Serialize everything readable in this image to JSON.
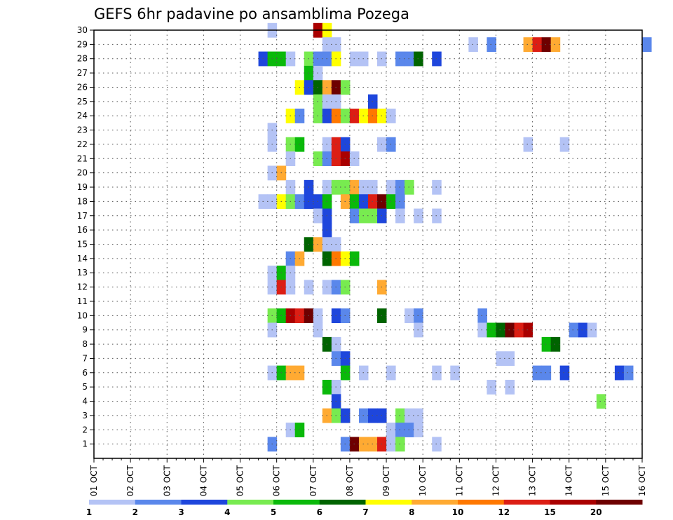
{
  "chart_data": {
    "type": "heatmap",
    "title": "GEFS 6hr padavine po ansamblima Pozega",
    "xlabel": "",
    "ylabel": "",
    "x_tick_labels": [
      "01 OCT",
      "02 OCT",
      "03 OCT",
      "04 OCT",
      "05 OCT",
      "06 OCT",
      "07 OCT",
      "08 OCT",
      "09 OCT",
      "10 OCT",
      "11 OCT",
      "12 OCT",
      "13 OCT",
      "14 OCT",
      "15 OCT",
      "16 OCT"
    ],
    "y_tick_labels": [
      "1",
      "2",
      "3",
      "4",
      "5",
      "6",
      "7",
      "8",
      "9",
      "10",
      "11",
      "12",
      "13",
      "14",
      "15",
      "16",
      "17",
      "18",
      "19",
      "20",
      "21",
      "22",
      "23",
      "24",
      "25",
      "26",
      "27",
      "28",
      "29",
      "30"
    ],
    "x_range_days": [
      1,
      16
    ],
    "y_range": [
      0,
      30
    ],
    "step_hours": 6,
    "grid": true,
    "legend": {
      "position": "bottom",
      "labels": [
        "1",
        "2",
        "3",
        "4",
        "5",
        "6",
        "7",
        "8",
        "10",
        "12",
        "15",
        "20"
      ],
      "colors": [
        "#b4c3f5",
        "#5a87eb",
        "#1e46dc",
        "#78eb50",
        "#0ab90a",
        "#006400",
        "#ffff00",
        "#ffaa32",
        "#ff7800",
        "#dc1e14",
        "#aa0000",
        "#6e0000"
      ]
    },
    "cells_note": "each cell: [day_of_october_at_cell_start, member, color_level_index]",
    "cells": [
      [
        5.75,
        30,
        0
      ],
      [
        7.0,
        30,
        10
      ],
      [
        7.25,
        30,
        6
      ],
      [
        7.25,
        29,
        0
      ],
      [
        7.5,
        29,
        0
      ],
      [
        11.25,
        29,
        0
      ],
      [
        11.75,
        29,
        1
      ],
      [
        12.75,
        29,
        7
      ],
      [
        13.0,
        29,
        9
      ],
      [
        13.25,
        29,
        11
      ],
      [
        13.5,
        29,
        7
      ],
      [
        16.0,
        29,
        1
      ],
      [
        5.5,
        28,
        2
      ],
      [
        5.75,
        28,
        4
      ],
      [
        6.0,
        28,
        4
      ],
      [
        6.25,
        28,
        0
      ],
      [
        6.75,
        28,
        3
      ],
      [
        7.0,
        28,
        1
      ],
      [
        7.25,
        28,
        1
      ],
      [
        7.5,
        28,
        6
      ],
      [
        8.0,
        28,
        0
      ],
      [
        8.25,
        28,
        0
      ],
      [
        8.75,
        28,
        0
      ],
      [
        9.25,
        28,
        1
      ],
      [
        9.5,
        28,
        1
      ],
      [
        9.75,
        28,
        5
      ],
      [
        10.25,
        28,
        2
      ],
      [
        6.75,
        27,
        4
      ],
      [
        7.0,
        27,
        0
      ],
      [
        6.5,
        26,
        6
      ],
      [
        6.75,
        26,
        2
      ],
      [
        7.0,
        26,
        5
      ],
      [
        7.25,
        26,
        7
      ],
      [
        7.5,
        26,
        11
      ],
      [
        7.75,
        26,
        3
      ],
      [
        7.0,
        25,
        3
      ],
      [
        7.25,
        25,
        0
      ],
      [
        7.5,
        25,
        0
      ],
      [
        8.5,
        25,
        2
      ],
      [
        6.25,
        24,
        6
      ],
      [
        6.5,
        24,
        1
      ],
      [
        7.0,
        24,
        3
      ],
      [
        7.25,
        24,
        2
      ],
      [
        7.5,
        24,
        8
      ],
      [
        7.75,
        24,
        3
      ],
      [
        8.0,
        24,
        9
      ],
      [
        8.25,
        24,
        6
      ],
      [
        8.5,
        24,
        8
      ],
      [
        8.75,
        24,
        6
      ],
      [
        9.0,
        24,
        0
      ],
      [
        5.75,
        23,
        0
      ],
      [
        5.75,
        22,
        0
      ],
      [
        6.25,
        22,
        3
      ],
      [
        6.5,
        22,
        4
      ],
      [
        7.25,
        22,
        0
      ],
      [
        7.5,
        22,
        9
      ],
      [
        7.75,
        22,
        2
      ],
      [
        8.75,
        22,
        0
      ],
      [
        9.0,
        22,
        1
      ],
      [
        12.75,
        22,
        0
      ],
      [
        13.75,
        22,
        0
      ],
      [
        6.25,
        21,
        0
      ],
      [
        7.0,
        21,
        3
      ],
      [
        7.25,
        21,
        1
      ],
      [
        7.5,
        21,
        9
      ],
      [
        7.75,
        21,
        10
      ],
      [
        8.0,
        21,
        0
      ],
      [
        5.75,
        20,
        0
      ],
      [
        6.0,
        20,
        7
      ],
      [
        6.25,
        19,
        0
      ],
      [
        6.75,
        19,
        2
      ],
      [
        7.25,
        19,
        0
      ],
      [
        7.5,
        19,
        3
      ],
      [
        7.75,
        19,
        3
      ],
      [
        8.0,
        19,
        7
      ],
      [
        8.25,
        19,
        0
      ],
      [
        8.5,
        19,
        0
      ],
      [
        9.0,
        19,
        0
      ],
      [
        9.25,
        19,
        1
      ],
      [
        9.5,
        19,
        3
      ],
      [
        10.25,
        19,
        0
      ],
      [
        5.5,
        18,
        0
      ],
      [
        5.75,
        18,
        0
      ],
      [
        6.0,
        18,
        6
      ],
      [
        6.25,
        18,
        3
      ],
      [
        6.5,
        18,
        1
      ],
      [
        6.75,
        18,
        2
      ],
      [
        7.0,
        18,
        2
      ],
      [
        7.25,
        18,
        4
      ],
      [
        7.75,
        18,
        7
      ],
      [
        8.0,
        18,
        4
      ],
      [
        8.25,
        18,
        2
      ],
      [
        8.5,
        18,
        9
      ],
      [
        8.75,
        18,
        11
      ],
      [
        9.0,
        18,
        4
      ],
      [
        9.25,
        18,
        1
      ],
      [
        7.0,
        17,
        0
      ],
      [
        7.25,
        17,
        2
      ],
      [
        8.0,
        17,
        1
      ],
      [
        8.25,
        17,
        3
      ],
      [
        8.5,
        17,
        3
      ],
      [
        8.75,
        17,
        2
      ],
      [
        9.25,
        17,
        0
      ],
      [
        9.75,
        17,
        0
      ],
      [
        10.25,
        17,
        0
      ],
      [
        7.25,
        16,
        2
      ],
      [
        6.75,
        15,
        5
      ],
      [
        7.0,
        15,
        7
      ],
      [
        7.25,
        15,
        0
      ],
      [
        7.5,
        15,
        0
      ],
      [
        6.25,
        14,
        1
      ],
      [
        6.5,
        14,
        7
      ],
      [
        7.25,
        14,
        5
      ],
      [
        7.5,
        14,
        8
      ],
      [
        7.75,
        14,
        6
      ],
      [
        8.0,
        14,
        4
      ],
      [
        5.75,
        13,
        0
      ],
      [
        6.0,
        13,
        4
      ],
      [
        6.25,
        13,
        0
      ],
      [
        5.75,
        12,
        0
      ],
      [
        6.0,
        12,
        9
      ],
      [
        6.25,
        12,
        0
      ],
      [
        6.75,
        12,
        0
      ],
      [
        7.25,
        12,
        0
      ],
      [
        7.5,
        12,
        1
      ],
      [
        7.75,
        12,
        3
      ],
      [
        8.75,
        12,
        7
      ],
      [
        5.75,
        10,
        3
      ],
      [
        6.0,
        10,
        4
      ],
      [
        6.25,
        10,
        10
      ],
      [
        6.5,
        10,
        9
      ],
      [
        6.75,
        10,
        11
      ],
      [
        7.0,
        10,
        0
      ],
      [
        7.5,
        10,
        2
      ],
      [
        7.75,
        10,
        1
      ],
      [
        8.75,
        10,
        5
      ],
      [
        9.5,
        10,
        0
      ],
      [
        9.75,
        10,
        1
      ],
      [
        11.5,
        10,
        1
      ],
      [
        5.75,
        9,
        0
      ],
      [
        7.0,
        9,
        0
      ],
      [
        9.75,
        9,
        0
      ],
      [
        11.5,
        9,
        0
      ],
      [
        11.75,
        9,
        4
      ],
      [
        12.0,
        9,
        5
      ],
      [
        12.25,
        9,
        11
      ],
      [
        12.5,
        9,
        9
      ],
      [
        12.75,
        9,
        10
      ],
      [
        14.0,
        9,
        1
      ],
      [
        14.25,
        9,
        2
      ],
      [
        14.5,
        9,
        0
      ],
      [
        7.25,
        8,
        5
      ],
      [
        7.5,
        8,
        0
      ],
      [
        13.25,
        8,
        4
      ],
      [
        13.5,
        8,
        5
      ],
      [
        7.5,
        7,
        1
      ],
      [
        7.75,
        7,
        2
      ],
      [
        12.0,
        7,
        0
      ],
      [
        12.25,
        7,
        0
      ],
      [
        5.75,
        6,
        0
      ],
      [
        6.0,
        6,
        4
      ],
      [
        6.25,
        6,
        7
      ],
      [
        6.5,
        6,
        7
      ],
      [
        7.75,
        6,
        4
      ],
      [
        8.25,
        6,
        0
      ],
      [
        9.0,
        6,
        0
      ],
      [
        10.25,
        6,
        0
      ],
      [
        10.75,
        6,
        0
      ],
      [
        13.0,
        6,
        1
      ],
      [
        13.25,
        6,
        1
      ],
      [
        13.75,
        6,
        2
      ],
      [
        15.25,
        6,
        2
      ],
      [
        15.5,
        6,
        1
      ],
      [
        7.25,
        5,
        4
      ],
      [
        7.5,
        5,
        0
      ],
      [
        11.75,
        5,
        0
      ],
      [
        12.25,
        5,
        0
      ],
      [
        7.5,
        4,
        2
      ],
      [
        14.75,
        4,
        3
      ],
      [
        7.25,
        3,
        7
      ],
      [
        7.5,
        3,
        3
      ],
      [
        7.75,
        3,
        2
      ],
      [
        8.25,
        3,
        1
      ],
      [
        8.5,
        3,
        2
      ],
      [
        8.75,
        3,
        2
      ],
      [
        9.25,
        3,
        3
      ],
      [
        9.5,
        3,
        0
      ],
      [
        9.75,
        3,
        0
      ],
      [
        6.25,
        2,
        0
      ],
      [
        6.5,
        2,
        4
      ],
      [
        9.0,
        2,
        0
      ],
      [
        9.25,
        2,
        1
      ],
      [
        9.5,
        2,
        1
      ],
      [
        9.75,
        2,
        0
      ],
      [
        5.75,
        1,
        1
      ],
      [
        7.75,
        1,
        1
      ],
      [
        8.0,
        1,
        11
      ],
      [
        8.25,
        1,
        7
      ],
      [
        8.5,
        1,
        7
      ],
      [
        8.75,
        1,
        9
      ],
      [
        9.0,
        1,
        0
      ],
      [
        9.25,
        1,
        3
      ],
      [
        10.25,
        1,
        0
      ]
    ]
  }
}
